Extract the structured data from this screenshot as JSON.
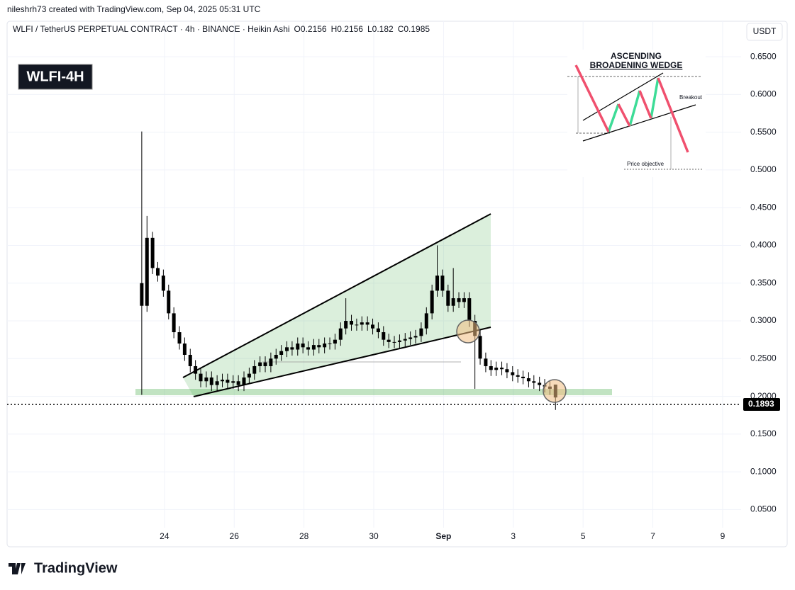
{
  "header": {
    "credit": "nileshrh73 created with TradingView.com, Sep 04, 2025 05:31 UTC",
    "badge": "WLFI-4H",
    "currency": "USDT"
  },
  "chart_data": {
    "type": "candlestick",
    "symbol": "WLFI / TetherUS PERPETUAL CONTRACT · 4h · BINANCE · Heikin Ashi",
    "ohlc": [
      {
        "label": "O",
        "value": 0.2156
      },
      {
        "label": "H",
        "value": 0.2156
      },
      {
        "label": "L",
        "value": 0.182
      },
      {
        "label": "C",
        "value": 0.1985
      }
    ],
    "x": [
      23.35,
      23.5,
      23.66,
      23.81,
      23.97,
      24.12,
      24.27,
      24.43,
      24.58,
      24.74,
      24.89,
      25.04,
      25.2,
      25.35,
      25.51,
      25.66,
      25.81,
      25.97,
      26.12,
      26.28,
      26.43,
      26.58,
      26.74,
      26.89,
      27.05,
      27.2,
      27.35,
      27.51,
      27.66,
      27.82,
      27.97,
      28.12,
      28.28,
      28.43,
      28.59,
      28.74,
      28.89,
      29.05,
      29.2,
      29.36,
      29.51,
      29.66,
      29.82,
      29.97,
      30.13,
      30.28,
      30.43,
      30.59,
      30.74,
      30.9,
      31.05,
      31.2,
      31.36,
      31.51,
      31.67,
      31.82,
      31.97,
      32.13,
      32.28,
      32.44,
      32.59,
      32.74,
      32.9,
      33.05,
      33.21,
      33.36,
      33.51,
      33.67,
      33.82,
      33.98,
      34.13,
      34.28,
      34.44,
      34.59,
      34.75,
      34.9,
      35.05,
      35.21
    ],
    "open": [
      0.35,
      0.32,
      0.41,
      0.37,
      0.36,
      0.34,
      0.31,
      0.285,
      0.27,
      0.255,
      0.24,
      0.23,
      0.22,
      0.225,
      0.215,
      0.22,
      0.222,
      0.218,
      0.22,
      0.215,
      0.225,
      0.23,
      0.24,
      0.245,
      0.24,
      0.25,
      0.255,
      0.26,
      0.265,
      0.262,
      0.27,
      0.265,
      0.262,
      0.268,
      0.265,
      0.27,
      0.27,
      0.275,
      0.29,
      0.3,
      0.295,
      0.295,
      0.298,
      0.295,
      0.29,
      0.285,
      0.275,
      0.272,
      0.272,
      0.274,
      0.276,
      0.278,
      0.28,
      0.29,
      0.31,
      0.34,
      0.36,
      0.34,
      0.32,
      0.33,
      0.325,
      0.33,
      0.3,
      0.28,
      0.25,
      0.24,
      0.235,
      0.238,
      0.236,
      0.232,
      0.228,
      0.226,
      0.224,
      0.22,
      0.218,
      0.215,
      0.213,
      0.2156
    ],
    "high": [
      0.551,
      0.439,
      0.418,
      0.378,
      0.368,
      0.348,
      0.318,
      0.293,
      0.278,
      0.263,
      0.248,
      0.238,
      0.233,
      0.233,
      0.228,
      0.23,
      0.23,
      0.228,
      0.228,
      0.233,
      0.238,
      0.248,
      0.253,
      0.253,
      0.258,
      0.263,
      0.268,
      0.273,
      0.273,
      0.278,
      0.278,
      0.273,
      0.276,
      0.276,
      0.278,
      0.278,
      0.283,
      0.298,
      0.33,
      0.308,
      0.303,
      0.306,
      0.306,
      0.303,
      0.298,
      0.293,
      0.283,
      0.28,
      0.282,
      0.284,
      0.286,
      0.288,
      0.298,
      0.318,
      0.348,
      0.4,
      0.368,
      0.348,
      0.37,
      0.338,
      0.338,
      0.338,
      0.308,
      0.288,
      0.258,
      0.248,
      0.246,
      0.246,
      0.244,
      0.24,
      0.236,
      0.234,
      0.232,
      0.228,
      0.226,
      0.223,
      0.221,
      0.2156
    ],
    "low": [
      0.202,
      0.312,
      0.362,
      0.352,
      0.332,
      0.302,
      0.277,
      0.262,
      0.247,
      0.232,
      0.222,
      0.212,
      0.212,
      0.207,
      0.207,
      0.212,
      0.21,
      0.21,
      0.207,
      0.207,
      0.217,
      0.222,
      0.232,
      0.232,
      0.232,
      0.242,
      0.247,
      0.252,
      0.254,
      0.254,
      0.257,
      0.254,
      0.254,
      0.257,
      0.257,
      0.262,
      0.262,
      0.267,
      0.282,
      0.287,
      0.287,
      0.287,
      0.287,
      0.282,
      0.277,
      0.267,
      0.264,
      0.264,
      0.264,
      0.266,
      0.268,
      0.27,
      0.272,
      0.282,
      0.302,
      0.332,
      0.332,
      0.312,
      0.312,
      0.317,
      0.317,
      0.292,
      0.21,
      0.242,
      0.232,
      0.227,
      0.227,
      0.228,
      0.224,
      0.22,
      0.218,
      0.216,
      0.212,
      0.21,
      0.207,
      0.205,
      0.202,
      0.182
    ],
    "close": [
      0.32,
      0.41,
      0.37,
      0.36,
      0.34,
      0.31,
      0.285,
      0.27,
      0.255,
      0.24,
      0.23,
      0.22,
      0.225,
      0.215,
      0.22,
      0.222,
      0.218,
      0.22,
      0.215,
      0.225,
      0.23,
      0.24,
      0.245,
      0.24,
      0.25,
      0.255,
      0.26,
      0.265,
      0.262,
      0.27,
      0.265,
      0.262,
      0.268,
      0.265,
      0.27,
      0.27,
      0.275,
      0.29,
      0.3,
      0.295,
      0.295,
      0.298,
      0.295,
      0.29,
      0.285,
      0.275,
      0.272,
      0.272,
      0.274,
      0.276,
      0.278,
      0.28,
      0.29,
      0.31,
      0.34,
      0.36,
      0.34,
      0.32,
      0.33,
      0.325,
      0.33,
      0.3,
      0.28,
      0.25,
      0.24,
      0.235,
      0.238,
      0.236,
      0.232,
      0.228,
      0.226,
      0.224,
      0.22,
      0.218,
      0.215,
      0.213,
      0.21,
      0.1985
    ],
    "color": "#000000",
    "xlim": [
      19.49,
      40.53
    ],
    "xticks": [
      24,
      26,
      28,
      30,
      {
        "value": 32,
        "label": "Sep"
      },
      {
        "value": 34,
        "label": "3"
      },
      {
        "value": 36,
        "label": "5"
      },
      {
        "value": 38,
        "label": "7"
      },
      {
        "value": 40,
        "label": "9"
      }
    ],
    "ylim": [
      0.026,
      0.697
    ],
    "yticks": [
      {
        "value": 0.05,
        "label": "0.0500"
      },
      {
        "value": 0.1,
        "label": "0.1000"
      },
      {
        "value": 0.15,
        "label": "0.1500"
      },
      {
        "value": 0.2,
        "label": "0.2000"
      },
      {
        "value": 0.25,
        "label": "0.2500"
      },
      {
        "value": 0.3,
        "label": "0.3000"
      },
      {
        "value": 0.35,
        "label": "0.3500"
      },
      {
        "value": 0.4,
        "label": "0.4000"
      },
      {
        "value": 0.45,
        "label": "0.4500"
      },
      {
        "value": 0.5,
        "label": "0.5000"
      },
      {
        "value": 0.55,
        "label": "0.5500"
      },
      {
        "value": 0.6,
        "label": "0.6000"
      },
      {
        "value": 0.65,
        "label": "0.6500"
      }
    ],
    "grid": true,
    "last_price": 0.1893,
    "annotations": {
      "pattern_title": [
        "ASCENDING",
        "BROADENING WEDGE"
      ],
      "breakout": "Breakout",
      "objective": "Price objective"
    }
  },
  "footer": {
    "logo": "TradingView"
  }
}
